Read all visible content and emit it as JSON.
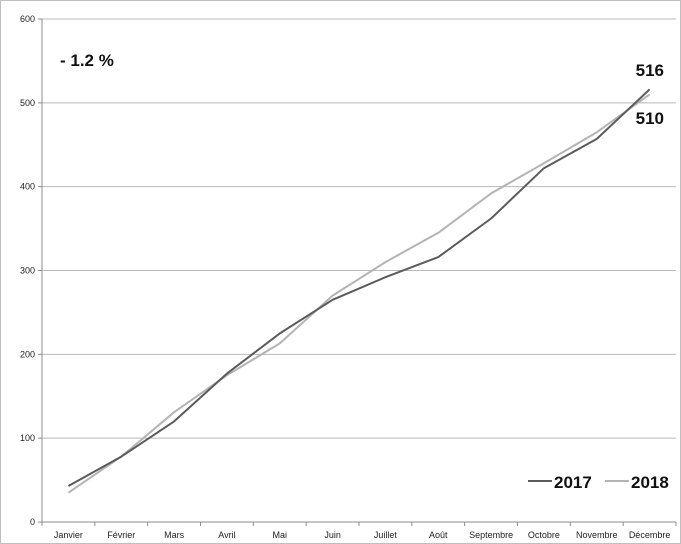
{
  "chart_data": {
    "type": "line",
    "title": "",
    "xlabel": "",
    "ylabel": "",
    "categories": [
      "Janvier",
      "Février",
      "Mars",
      "Avril",
      "Mai",
      "Juin",
      "Juillet",
      "Août",
      "Septembre",
      "Octobre",
      "Novembre",
      "Décembre"
    ],
    "ylim": [
      0,
      600
    ],
    "yticks": [
      0,
      100,
      200,
      300,
      400,
      500,
      600
    ],
    "grid": true,
    "legend_position": "bottom-right",
    "series": [
      {
        "name": "2017",
        "color": "#5b5b5b",
        "values": [
          43,
          78,
          120,
          177,
          225,
          265,
          292,
          316,
          362,
          422,
          457,
          516
        ]
      },
      {
        "name": "2018",
        "color": "#b4b4b4",
        "values": [
          35,
          78,
          131,
          175,
          213,
          270,
          310,
          345,
          392,
          428,
          465,
          510
        ]
      }
    ],
    "annotations": {
      "change": "- 1.2 %",
      "end_2017": "516",
      "end_2018": "510"
    }
  }
}
